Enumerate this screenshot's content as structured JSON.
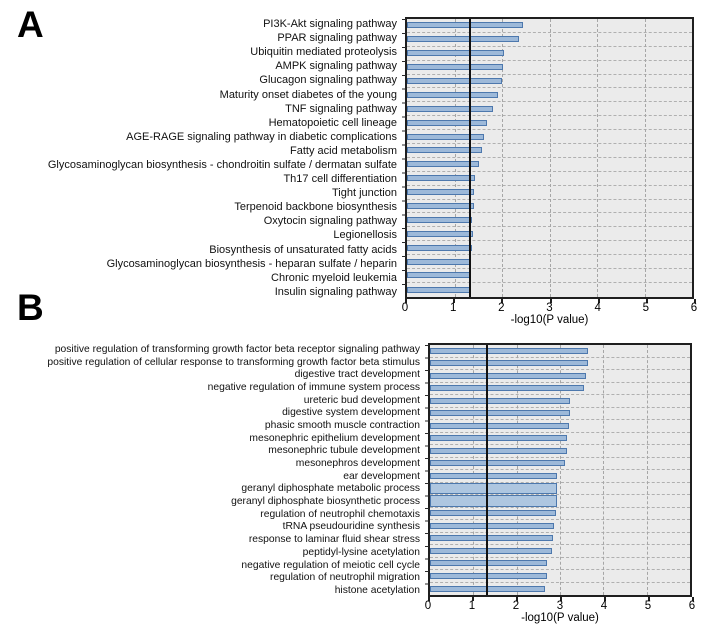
{
  "page": {
    "background": "#ffffff"
  },
  "panels": [
    {
      "letter": "A"
    },
    {
      "letter": "B"
    }
  ],
  "colors": {
    "bar_fill": "#9db9d9",
    "bar_fill_thick": "#aec6e0",
    "bar_border": "#4d78ad",
    "plot_background": "#ebebeb",
    "gridline": "#a6a6a6",
    "threshold_line": "#111111"
  },
  "chart_data": [
    {
      "type": "bar",
      "orientation": "horizontal",
      "panel": "A",
      "xlabel": "-log10(P value)",
      "xlim": [
        0,
        6
      ],
      "x_ticks": [
        0,
        1,
        2,
        3,
        4,
        5,
        6
      ],
      "grid": "dashed",
      "legend": "none",
      "threshold_line": 1.3,
      "categories": [
        "PI3K-Akt signaling pathway",
        "PPAR signaling pathway",
        "Ubiquitin mediated proteolysis",
        "AMPK signaling pathway",
        "Glucagon signaling pathway",
        "Maturity onset diabetes of the young",
        "TNF signaling pathway",
        "Hematopoietic cell lineage",
        "AGE-RAGE signaling pathway in diabetic complications",
        "Fatty acid metabolism",
        "Glycosaminoglycan biosynthesis - chondroitin sulfate / dermatan sulfate",
        "Th17 cell differentiation",
        "Tight junction",
        "Terpenoid backbone biosynthesis",
        "Oxytocin signaling pathway",
        "Legionellosis",
        "Biosynthesis of unsaturated fatty acids",
        "Glycosaminoglycan biosynthesis - heparan sulfate / heparin",
        "Chronic myeloid leukemia",
        "Insulin signaling pathway"
      ],
      "values": [
        2.45,
        2.35,
        2.05,
        2.03,
        2.0,
        1.92,
        1.82,
        1.68,
        1.63,
        1.58,
        1.51,
        1.44,
        1.41,
        1.42,
        1.37,
        1.39,
        1.36,
        1.35,
        1.33,
        1.32
      ],
      "thick_rows": []
    },
    {
      "type": "bar",
      "orientation": "horizontal",
      "panel": "B",
      "xlabel": "-log10(P value)",
      "xlim": [
        0,
        6
      ],
      "x_ticks": [
        0,
        1,
        2,
        3,
        4,
        5,
        6
      ],
      "grid": "dashed",
      "legend": "none",
      "threshold_line": 1.3,
      "categories": [
        "positive regulation of transforming growth factor beta receptor signaling pathway",
        "positive regulation of cellular response to transforming growth factor beta stimulus",
        "digestive tract development",
        "negative regulation of immune system process",
        "ureteric bud development",
        "digestive system development",
        "phasic smooth muscle contraction",
        "mesonephric epithelium development",
        "mesonephric tubule development",
        "mesonephros development",
        "ear development",
        "geranyl diphosphate metabolic process",
        "geranyl diphosphate biosynthetic process",
        "regulation of neutrophil chemotaxis",
        "tRNA pseudouridine synthesis",
        "response to laminar fluid shear stress",
        "peptidyl-lysine acetylation",
        "negative regulation of meiotic cell cycle",
        "regulation of neutrophil migration",
        "histone acetylation"
      ],
      "values": [
        3.65,
        3.65,
        3.6,
        3.55,
        3.22,
        3.22,
        3.2,
        3.17,
        3.17,
        3.12,
        2.94,
        2.92,
        2.92,
        2.9,
        2.85,
        2.83,
        2.82,
        2.71,
        2.69,
        2.65
      ],
      "thick_rows": [
        11,
        12
      ]
    }
  ]
}
